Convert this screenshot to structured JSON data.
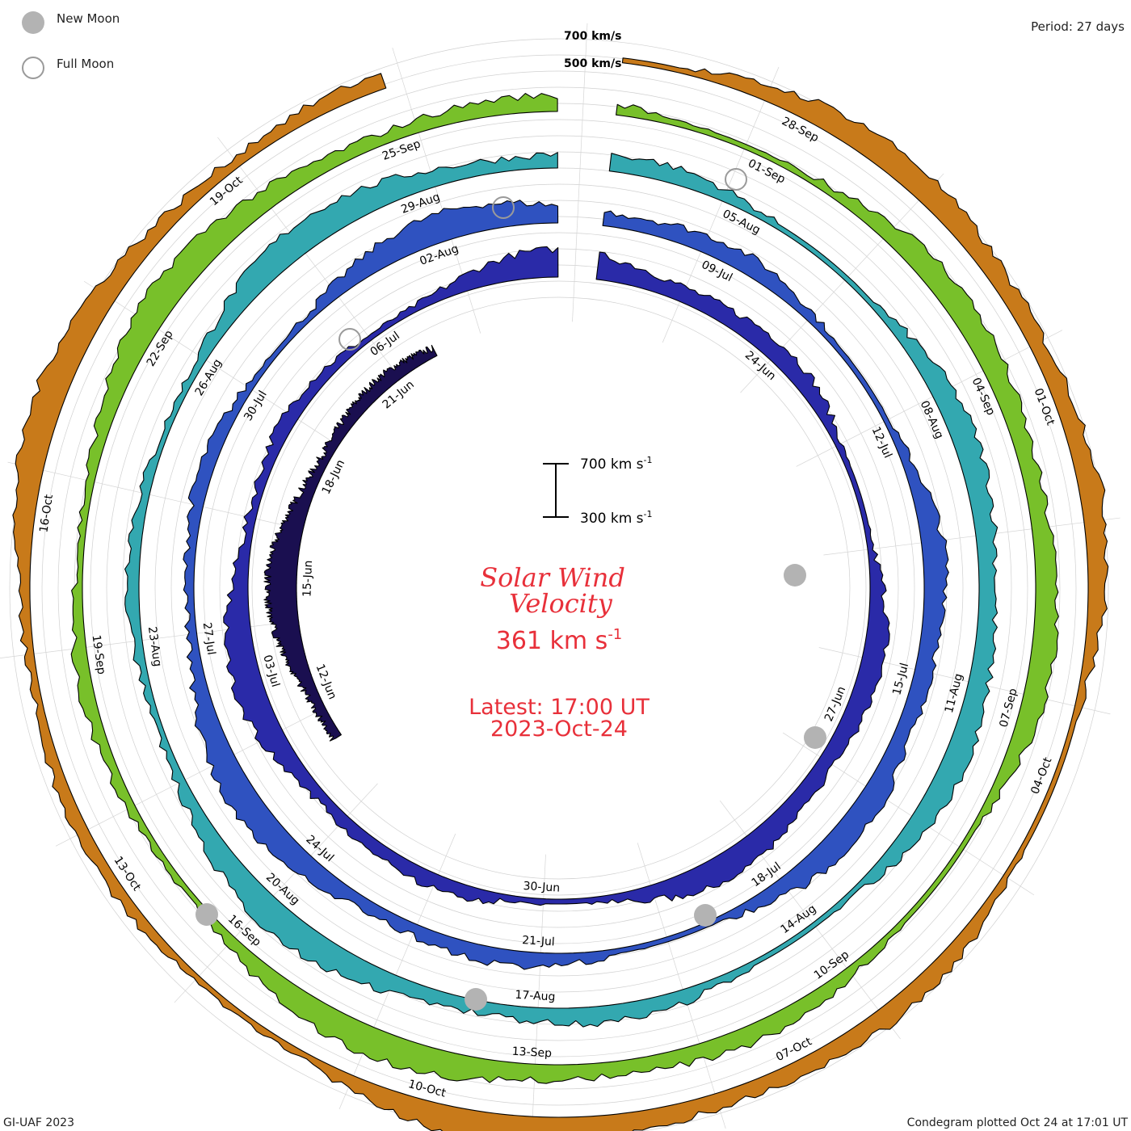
{
  "legend": {
    "new_moon_label": "New Moon",
    "full_moon_label": "Full Moon",
    "new_moon_color": "#b3b3b3",
    "full_moon_color": "#9a9a9a"
  },
  "period_label": "Period: 27 days",
  "footer": {
    "left": "GI-UAF 2023",
    "right": "Condegram plotted Oct 24 at 17:01 UT"
  },
  "center": {
    "title_line1": "Solar Wind",
    "title_line2": "Velocity",
    "current_value": "361",
    "current_unit": "km s",
    "unit_exp": "-1",
    "latest_line1": "Latest: 17:00 UT",
    "latest_line2": "2023-Oct-24",
    "accent_color": "#e8303a"
  },
  "chart_data": {
    "type": "condegram",
    "title": "Solar Wind Velocity",
    "period_days": 27,
    "scale_bar": {
      "top_label": "700 km s",
      "bottom_label": "300 km s",
      "exp": "-1",
      "top_value": 700,
      "bottom_value": 300
    },
    "outer_scale_labels": [
      {
        "label": "700 km/s",
        "value": 700
      },
      {
        "label": "500 km/s",
        "value": 500
      }
    ],
    "latest_value_kms": 361,
    "rings": [
      {
        "color": "#1a0f50",
        "date_labels": [
          "12-Jun",
          "15-Jun",
          "18-Jun",
          "21-Jun"
        ]
      },
      {
        "color": "#2a2aa8",
        "date_labels": [
          "24-Jun",
          "27-Jun",
          "30-Jun",
          "03-Jul",
          "06-Jul"
        ]
      },
      {
        "color": "#2f52c0",
        "date_labels": [
          "09-Jul",
          "12-Jul",
          "15-Jul",
          "18-Jul",
          "21-Jul",
          "24-Jul",
          "27-Jul",
          "30-Jul",
          "02-Aug"
        ]
      },
      {
        "color": "#33a8b0",
        "date_labels": [
          "05-Aug",
          "08-Aug",
          "11-Aug",
          "14-Aug",
          "17-Aug",
          "20-Aug",
          "23-Aug",
          "26-Aug",
          "29-Aug"
        ]
      },
      {
        "color": "#78c02a",
        "date_labels": [
          "01-Sep",
          "04-Sep",
          "07-Sep",
          "10-Sep",
          "13-Sep",
          "16-Sep",
          "19-Sep",
          "22-Sep",
          "25-Sep"
        ]
      },
      {
        "color": "#c87a1a",
        "date_labels": [
          "28-Sep",
          "01-Oct",
          "04-Oct",
          "07-Oct",
          "10-Oct",
          "13-Oct",
          "16-Oct",
          "19-Oct"
        ]
      }
    ]
  }
}
